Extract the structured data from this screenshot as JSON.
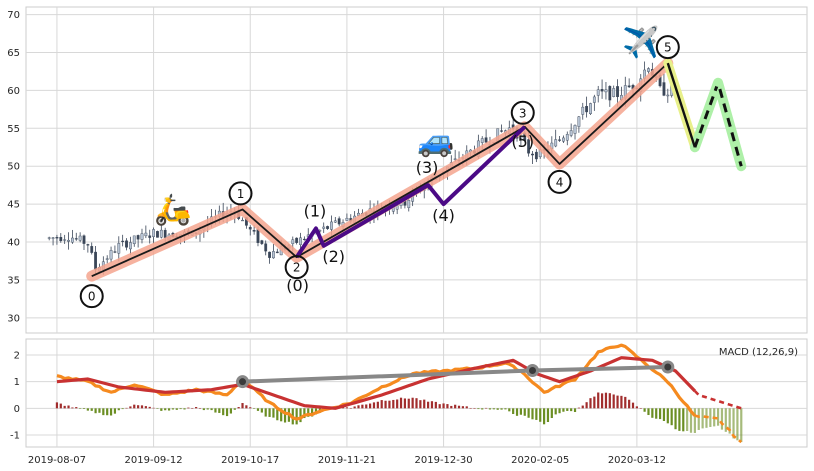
{
  "chart_data": [
    {
      "type": "candlestick",
      "panel": "price",
      "ylim": [
        28,
        71
      ],
      "yticks": [
        30,
        35,
        40,
        45,
        50,
        55,
        60,
        65,
        70
      ],
      "x_dates": [
        "2019-08-07",
        "2019-09-12",
        "2019-10-17",
        "2019-11-21",
        "2019-12-30",
        "2020-02-05",
        "2020-03-12"
      ],
      "x_range": [
        -8,
        194
      ],
      "x_ticks_idx": [
        0,
        25,
        50,
        75,
        100,
        125,
        150
      ],
      "candle_anchors": [
        [
          -2,
          40.5
        ],
        [
          3,
          40.8
        ],
        [
          8,
          39.8
        ],
        [
          10,
          36.5
        ],
        [
          16,
          39.5
        ],
        [
          25,
          41.2
        ],
        [
          35,
          41.0
        ],
        [
          43,
          43.8
        ],
        [
          46,
          44.2
        ],
        [
          50,
          41.5
        ],
        [
          55,
          38.5
        ],
        [
          60,
          39.5
        ],
        [
          65,
          40.8
        ],
        [
          75,
          43.0
        ],
        [
          80,
          44.0
        ],
        [
          85,
          44.8
        ],
        [
          90,
          45.3
        ],
        [
          95,
          47.5
        ],
        [
          100,
          49.5
        ],
        [
          110,
          53.0
        ],
        [
          115,
          54.5
        ],
        [
          118,
          55.2
        ],
        [
          122,
          52.0
        ],
        [
          125,
          51.5
        ],
        [
          130,
          53.5
        ],
        [
          135,
          56.5
        ],
        [
          140,
          59.5
        ],
        [
          145,
          59.5
        ],
        [
          150,
          61.0
        ],
        [
          153,
          63.5
        ],
        [
          156,
          60.0
        ]
      ],
      "wave_primary": {
        "points": [
          [
            9,
            35.5
          ],
          [
            48,
            44.3
          ],
          [
            62,
            38.0
          ],
          [
            121,
            55.2
          ],
          [
            130,
            50.3
          ],
          [
            158,
            63.6
          ]
        ],
        "labels": [
          "0",
          "1",
          "2",
          "3",
          "4",
          "5"
        ]
      },
      "wave_secondary": {
        "points": [
          [
            62,
            38.0
          ],
          [
            67,
            41.8
          ],
          [
            69,
            39.5
          ],
          [
            96,
            47.5
          ],
          [
            100,
            45.0
          ],
          [
            121,
            55.2
          ]
        ],
        "labels": [
          "(0)",
          "(1)",
          "(2)",
          "(3)",
          "(4)",
          "(5)"
        ]
      },
      "projection": {
        "points": [
          [
            158,
            63.6
          ],
          [
            165,
            52.5
          ],
          [
            171,
            61.0
          ],
          [
            177,
            50.0
          ]
        ]
      },
      "icons": [
        {
          "name": "scooter-icon",
          "glyph": "🛵",
          "x": 30,
          "y": 43.0
        },
        {
          "name": "car-icon",
          "glyph": "🚙",
          "x": 98,
          "y": 52.0
        },
        {
          "name": "airplane-icon",
          "glyph": "✈️",
          "x": 151,
          "y": 65.0
        }
      ]
    },
    {
      "type": "line",
      "panel": "macd",
      "ylim": [
        -1.45,
        2.6
      ],
      "yticks": [
        -1,
        0,
        1,
        2
      ],
      "legend": "MACD (12,26,9)",
      "legend_position": "top-right",
      "macd_anchors": [
        [
          0,
          1.2
        ],
        [
          8,
          1.0
        ],
        [
          14,
          0.6
        ],
        [
          20,
          0.9
        ],
        [
          28,
          0.5
        ],
        [
          36,
          0.7
        ],
        [
          44,
          0.5
        ],
        [
          48,
          1.1
        ],
        [
          55,
          0.2
        ],
        [
          62,
          -0.4
        ],
        [
          68,
          -0.1
        ],
        [
          76,
          0.2
        ],
        [
          84,
          0.8
        ],
        [
          92,
          1.3
        ],
        [
          100,
          1.4
        ],
        [
          108,
          1.5
        ],
        [
          116,
          1.7
        ],
        [
          120,
          1.4
        ],
        [
          126,
          0.6
        ],
        [
          134,
          1.1
        ],
        [
          140,
          2.1
        ],
        [
          146,
          2.4
        ],
        [
          152,
          1.7
        ],
        [
          158,
          1.0
        ],
        [
          165,
          -0.3
        ],
        [
          171,
          -0.4
        ],
        [
          177,
          -1.3
        ]
      ],
      "signal_anchors": [
        [
          0,
          1.0
        ],
        [
          8,
          1.1
        ],
        [
          16,
          0.8
        ],
        [
          28,
          0.6
        ],
        [
          40,
          0.7
        ],
        [
          48,
          0.9
        ],
        [
          56,
          0.5
        ],
        [
          64,
          0.1
        ],
        [
          72,
          0.0
        ],
        [
          84,
          0.5
        ],
        [
          96,
          1.1
        ],
        [
          108,
          1.5
        ],
        [
          118,
          1.8
        ],
        [
          124,
          1.3
        ],
        [
          130,
          1.0
        ],
        [
          138,
          1.4
        ],
        [
          146,
          1.9
        ],
        [
          154,
          1.8
        ],
        [
          160,
          1.4
        ],
        [
          166,
          0.5
        ],
        [
          177,
          0.0
        ]
      ],
      "trendline": [
        [
          48,
          1.0
        ],
        [
          123,
          1.42
        ],
        [
          158,
          1.55
        ]
      ]
    }
  ]
}
